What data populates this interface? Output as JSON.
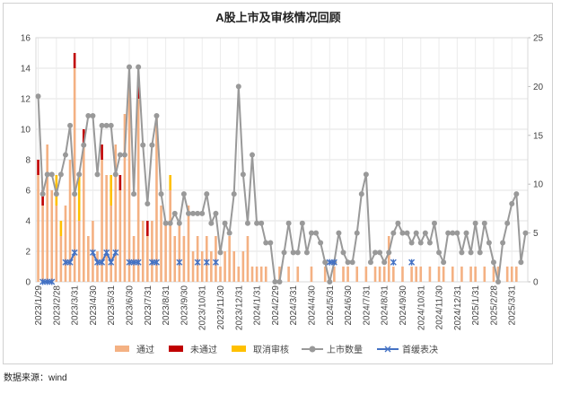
{
  "chart_data": {
    "type": "combo",
    "title": "A股上市及审核情况回顾",
    "source": "数据来源：wind",
    "categories": [
      "2023/1/29",
      null,
      null,
      null,
      "2023/2/28",
      null,
      null,
      null,
      "2023/3/31",
      null,
      null,
      null,
      "2023/4/30",
      null,
      null,
      null,
      "2023/5/31",
      null,
      null,
      null,
      "2023/6/30",
      null,
      null,
      null,
      "2023/7/31",
      null,
      null,
      null,
      "2023/8/31",
      null,
      null,
      null,
      "2023/9/30",
      null,
      null,
      null,
      "2023/10/31",
      null,
      null,
      null,
      "2023/11/30",
      null,
      null,
      null,
      "2023/12/31",
      null,
      null,
      null,
      "2024/1/31",
      null,
      null,
      null,
      "2024/2/29",
      null,
      null,
      null,
      "2024/3/31",
      null,
      null,
      null,
      "2024/4/30",
      null,
      null,
      null,
      "2024/5/31",
      null,
      null,
      null,
      "2024/6/30",
      null,
      null,
      null,
      "2024/7/31",
      null,
      null,
      null,
      "2024/8/31",
      null,
      null,
      null,
      "2024/9/30",
      null,
      null,
      null,
      "2024/10/31",
      null,
      null,
      null,
      "2024/11/30",
      null,
      null,
      null,
      "2024/12/31",
      null,
      null,
      null,
      "2025/1/31",
      null,
      null,
      null,
      "2025/2/28",
      null,
      null,
      null,
      "2025/3/31",
      null,
      null,
      null
    ],
    "ylim": [
      0,
      16
    ],
    "yticks": [
      0,
      2,
      4,
      6,
      8,
      10,
      12,
      14,
      16
    ],
    "y2lim": [
      0,
      25
    ],
    "y2ticks": [
      0,
      5,
      10,
      15,
      20,
      25
    ],
    "grid": true,
    "legend": "bottom",
    "series": [
      {
        "name": "通过",
        "type": "bar",
        "color": "#f4b183",
        "values": [
          7,
          5,
          9,
          6,
          5,
          3,
          5,
          8,
          14,
          4,
          9,
          3,
          4,
          2,
          8,
          7,
          5,
          9,
          6,
          11,
          13,
          3,
          12,
          4,
          3,
          4,
          11,
          5,
          4,
          6,
          3,
          4,
          3,
          5,
          2,
          3,
          2,
          3,
          2,
          3,
          1,
          2,
          3,
          2,
          1,
          2,
          3,
          1,
          1,
          1,
          1,
          0,
          0,
          1,
          0,
          1,
          0,
          1,
          0,
          0,
          1,
          0,
          0,
          1,
          0,
          1,
          0,
          1,
          1,
          0,
          1,
          0,
          1,
          0,
          1,
          1,
          1,
          3,
          1,
          0,
          1,
          0,
          1,
          1,
          1,
          0,
          1,
          0,
          1,
          1,
          0,
          1,
          0,
          1,
          0,
          1,
          1,
          0,
          1,
          0,
          1,
          1,
          0,
          1,
          1,
          1,
          0,
          0
        ]
      },
      {
        "name": "未通过",
        "type": "bar",
        "color": "#c00000",
        "values": [
          1,
          1,
          0,
          0,
          0,
          0,
          0,
          0,
          1,
          0,
          1,
          0,
          0,
          0,
          1,
          0,
          0,
          0,
          1,
          0,
          0,
          0,
          1,
          0,
          1,
          0,
          0,
          0,
          0,
          0,
          0,
          0,
          0,
          0,
          0,
          0,
          0,
          0,
          0,
          0,
          0,
          0,
          0,
          0,
          0,
          0,
          0,
          0,
          0,
          0,
          0,
          0,
          0,
          0,
          0,
          0,
          0,
          0,
          0,
          0,
          0,
          0,
          0,
          0,
          0,
          0,
          0,
          0,
          0,
          0,
          0,
          0,
          0,
          0,
          0,
          0,
          0,
          0,
          0,
          0,
          0,
          0,
          0,
          0,
          0,
          0,
          0,
          0,
          0,
          0,
          0,
          0,
          0,
          0,
          0,
          0,
          0,
          0,
          0,
          0,
          0,
          0,
          0,
          0,
          0,
          0,
          0,
          0
        ]
      },
      {
        "name": "取消审核",
        "type": "bar",
        "color": "#ffc000",
        "values": [
          0,
          0,
          0,
          0,
          2,
          1,
          0,
          0,
          0,
          3,
          0,
          0,
          0,
          0,
          0,
          0,
          2,
          0,
          0,
          0,
          0,
          0,
          0,
          0,
          0,
          0,
          0,
          0,
          0,
          1,
          0,
          0,
          0,
          0,
          0,
          0,
          0,
          0,
          0,
          0,
          0,
          0,
          0,
          0,
          0,
          0,
          0,
          0,
          0,
          0,
          0,
          0,
          0,
          0,
          0,
          0,
          0,
          0,
          0,
          0,
          0,
          0,
          0,
          0,
          0,
          0,
          0,
          0,
          0,
          0,
          0,
          0,
          0,
          0,
          0,
          0,
          0,
          0,
          0,
          0,
          0,
          0,
          0,
          0,
          0,
          0,
          0,
          0,
          0,
          0,
          0,
          0,
          0,
          0,
          0,
          0,
          0,
          0,
          0,
          0,
          0,
          0,
          0,
          0,
          0,
          0,
          0,
          0
        ]
      },
      {
        "name": "上市数量",
        "type": "line",
        "marker": "circle",
        "axis": "y2",
        "color": "#999999",
        "values": [
          19,
          9,
          11,
          11,
          9,
          11,
          13,
          16,
          9,
          11,
          14,
          17,
          17,
          11,
          16,
          16,
          16,
          11,
          13,
          13,
          22,
          9,
          22,
          14,
          8,
          14,
          17,
          9,
          6,
          6,
          7,
          6,
          9,
          7,
          7,
          7,
          7,
          9,
          6,
          7,
          3,
          6,
          5,
          9,
          20,
          11,
          6,
          13,
          6,
          6,
          4,
          4,
          0,
          0,
          3,
          6,
          3,
          3,
          6,
          3,
          5,
          5,
          4,
          2,
          0,
          2,
          5,
          3,
          2,
          2,
          5,
          9,
          11,
          2,
          3,
          3,
          2,
          3,
          5,
          6,
          5,
          5,
          4,
          5,
          4,
          5,
          4,
          6,
          3,
          2,
          5,
          5,
          5,
          3,
          5,
          3,
          6,
          3,
          6,
          4,
          2,
          0,
          4,
          6,
          8,
          9,
          2,
          5
        ]
      },
      {
        "name": "首缓表决",
        "type": "line",
        "marker": "x",
        "axis": "y2",
        "color": "#4472c4",
        "values": [
          null,
          0,
          0,
          0,
          null,
          null,
          2,
          2,
          3,
          null,
          null,
          null,
          3,
          2,
          2,
          3,
          2,
          3,
          null,
          null,
          2,
          2,
          2,
          null,
          null,
          2,
          2,
          null,
          null,
          null,
          null,
          2,
          null,
          null,
          null,
          2,
          null,
          2,
          null,
          2,
          null,
          null,
          null,
          null,
          null,
          null,
          null,
          null,
          null,
          null,
          null,
          null,
          null,
          null,
          null,
          null,
          null,
          null,
          null,
          null,
          null,
          null,
          null,
          null,
          2,
          2,
          null,
          null,
          null,
          null,
          null,
          null,
          null,
          null,
          null,
          null,
          null,
          null,
          2,
          null,
          null,
          null,
          2,
          null,
          null,
          null,
          null,
          null,
          null,
          null,
          null,
          null,
          null,
          null,
          null,
          null,
          null,
          null,
          null,
          null,
          null,
          null,
          null,
          null,
          null,
          null,
          null,
          null
        ]
      }
    ]
  }
}
